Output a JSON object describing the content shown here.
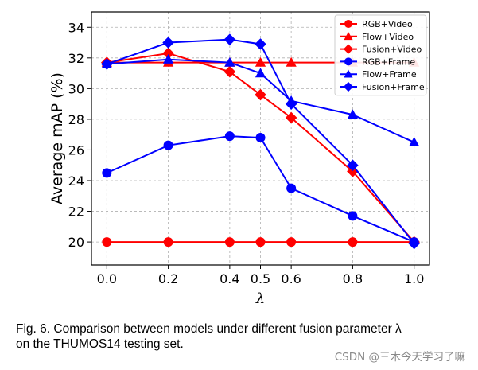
{
  "figure": {
    "caption_prefix": "Fig. 6.",
    "caption_line1": "Comparison between models under different fusion parameter λ",
    "caption_line2": "on the THUMOS14 testing set.",
    "watermark": "CSDN @三木今天学习了嘛"
  },
  "chart_data": {
    "type": "line",
    "title": "",
    "xlabel": "λ",
    "ylabel": "Average mAP (%)",
    "x": [
      0.0,
      0.2,
      0.4,
      0.5,
      0.6,
      0.8,
      1.0
    ],
    "x_tick_labels": [
      "0.0",
      "0.2",
      "0.4",
      "0.5",
      "0.6",
      "0.8",
      "1.0"
    ],
    "y_ticks": [
      20,
      22,
      24,
      26,
      28,
      30,
      32,
      34
    ],
    "xlim": [
      -0.05,
      1.05
    ],
    "ylim": [
      18.5,
      35
    ],
    "grid": true,
    "legend_position": "top-right",
    "series": [
      {
        "name": "RGB+Video",
        "color": "#ff0000",
        "marker": "circle",
        "values": [
          20.0,
          20.0,
          20.0,
          20.0,
          20.0,
          20.0,
          20.0
        ]
      },
      {
        "name": "Flow+Video",
        "color": "#ff0000",
        "marker": "triangle",
        "values": [
          31.7,
          31.7,
          31.7,
          31.7,
          31.7,
          31.7,
          31.7
        ]
      },
      {
        "name": "Fusion+Video",
        "color": "#ff0000",
        "marker": "diamond",
        "values": [
          31.7,
          32.3,
          31.1,
          29.6,
          28.1,
          24.6,
          20.0
        ]
      },
      {
        "name": "RGB+Frame",
        "color": "#0000ff",
        "marker": "circle",
        "values": [
          24.5,
          26.3,
          26.9,
          26.8,
          23.5,
          21.7,
          20.0
        ]
      },
      {
        "name": "Flow+Frame",
        "color": "#0000ff",
        "marker": "triangle",
        "values": [
          31.6,
          31.9,
          31.7,
          31.0,
          29.2,
          28.3,
          26.5
        ]
      },
      {
        "name": "Fusion+Frame",
        "color": "#0000ff",
        "marker": "diamond",
        "values": [
          31.6,
          33.0,
          33.2,
          32.9,
          29.0,
          25.0,
          19.9
        ]
      }
    ]
  }
}
